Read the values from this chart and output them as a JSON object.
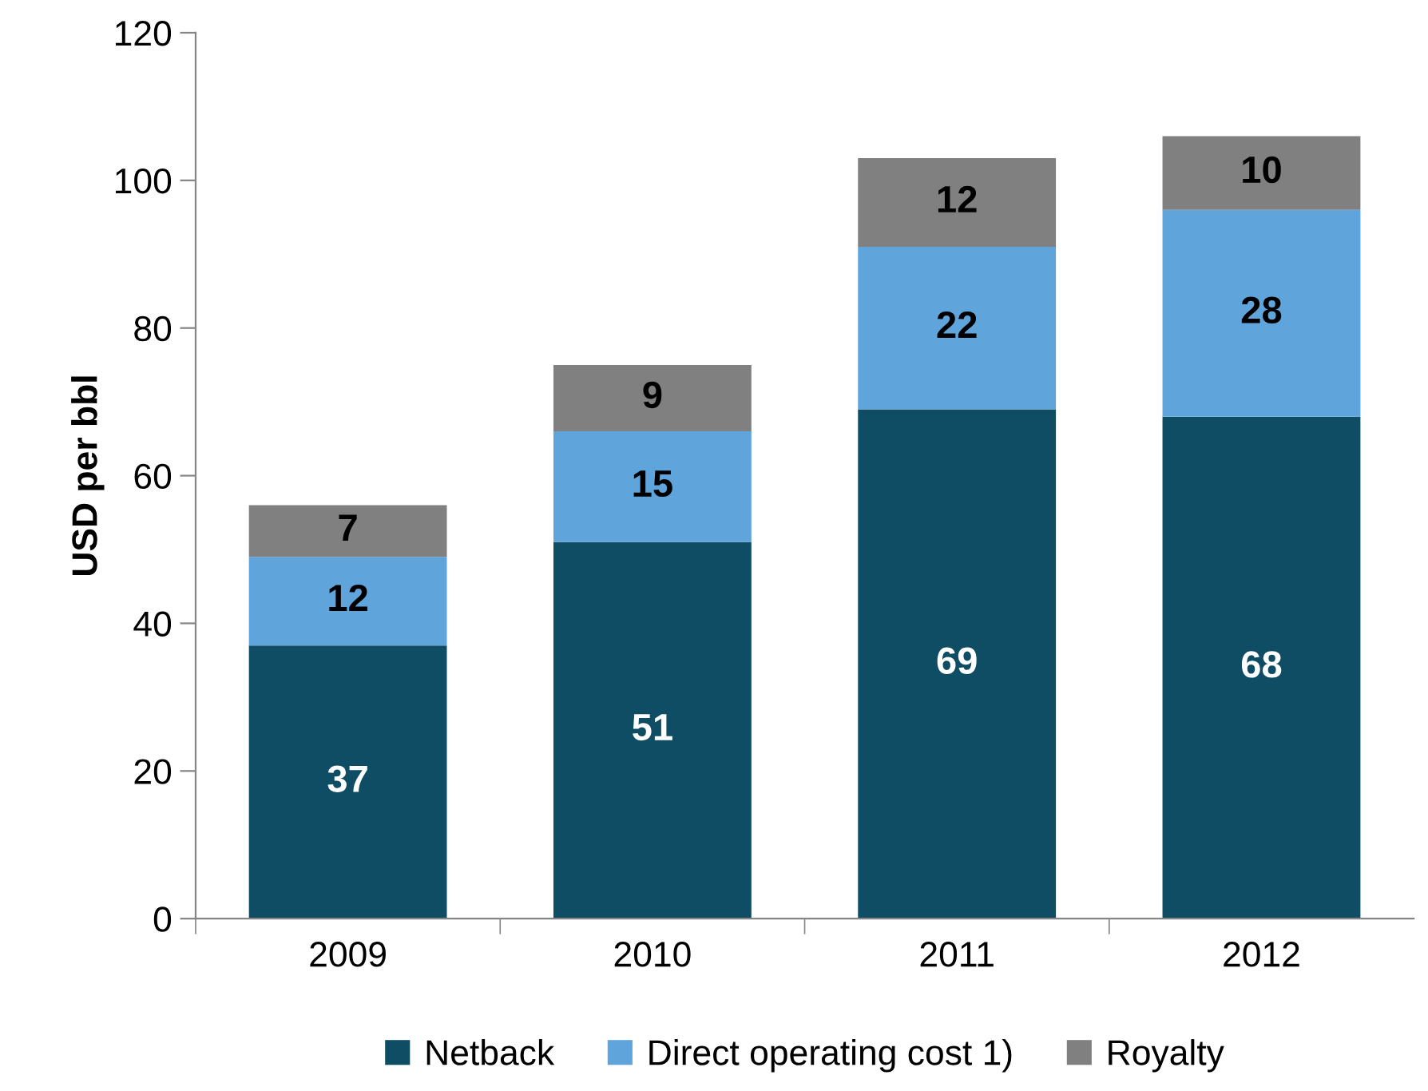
{
  "chart_data": {
    "type": "bar",
    "stacked": true,
    "ylabel": "USD per bbl",
    "categories": [
      "2009",
      "2010",
      "2011",
      "2012"
    ],
    "series": [
      {
        "name": "Netback",
        "color": "#0f4d64",
        "values": [
          37,
          51,
          69,
          68
        ]
      },
      {
        "name": "Direct operating cost 1)",
        "color": "#5fa4da",
        "values": [
          12,
          15,
          22,
          28
        ]
      },
      {
        "name": "Royalty",
        "color": "#808080",
        "values": [
          7,
          9,
          12,
          10
        ]
      }
    ],
    "ylim": [
      0,
      120
    ],
    "yticks": [
      0,
      20,
      40,
      60,
      80,
      100,
      120
    ],
    "data_labels": true,
    "legend": "bottom",
    "grid": false
  }
}
